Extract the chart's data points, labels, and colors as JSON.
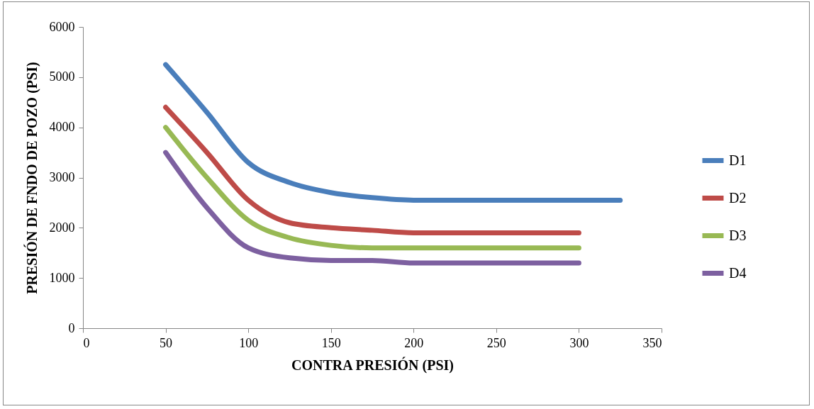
{
  "chart_data": {
    "type": "line",
    "xlabel": "CONTRA PRESIÓN (PSI)",
    "ylabel": "PRESIÓN DE FNDO DE POZO (PSI)",
    "xlim": [
      0,
      350
    ],
    "xticks": [
      0,
      50,
      100,
      150,
      200,
      250,
      300,
      350
    ],
    "ylim": [
      0,
      6000
    ],
    "yticks": [
      0,
      1000,
      2000,
      3000,
      4000,
      5000,
      6000
    ],
    "grid": false,
    "legend": "right",
    "marker": "none",
    "line_style": "solid",
    "series": [
      {
        "name": "D1",
        "color": "#4a7ebb",
        "x": [
          50,
          75,
          100,
          125,
          150,
          175,
          200,
          250,
          300,
          325
        ],
        "values": [
          5250,
          4300,
          3300,
          2900,
          2700,
          2600,
          2550,
          2550,
          2550,
          2550
        ]
      },
      {
        "name": "D2",
        "color": "#be4b48",
        "x": [
          50,
          75,
          100,
          125,
          150,
          175,
          200,
          250,
          300
        ],
        "values": [
          4400,
          3500,
          2550,
          2100,
          2000,
          1950,
          1900,
          1900,
          1900
        ]
      },
      {
        "name": "D3",
        "color": "#98b954",
        "x": [
          50,
          75,
          100,
          125,
          150,
          175,
          200,
          250,
          300
        ],
        "values": [
          4000,
          3000,
          2150,
          1800,
          1650,
          1600,
          1600,
          1600,
          1600
        ]
      },
      {
        "name": "D4",
        "color": "#7d60a0",
        "x": [
          50,
          75,
          100,
          125,
          150,
          175,
          200,
          250,
          300
        ],
        "values": [
          3500,
          2400,
          1600,
          1400,
          1350,
          1350,
          1300,
          1300,
          1300
        ]
      }
    ]
  }
}
